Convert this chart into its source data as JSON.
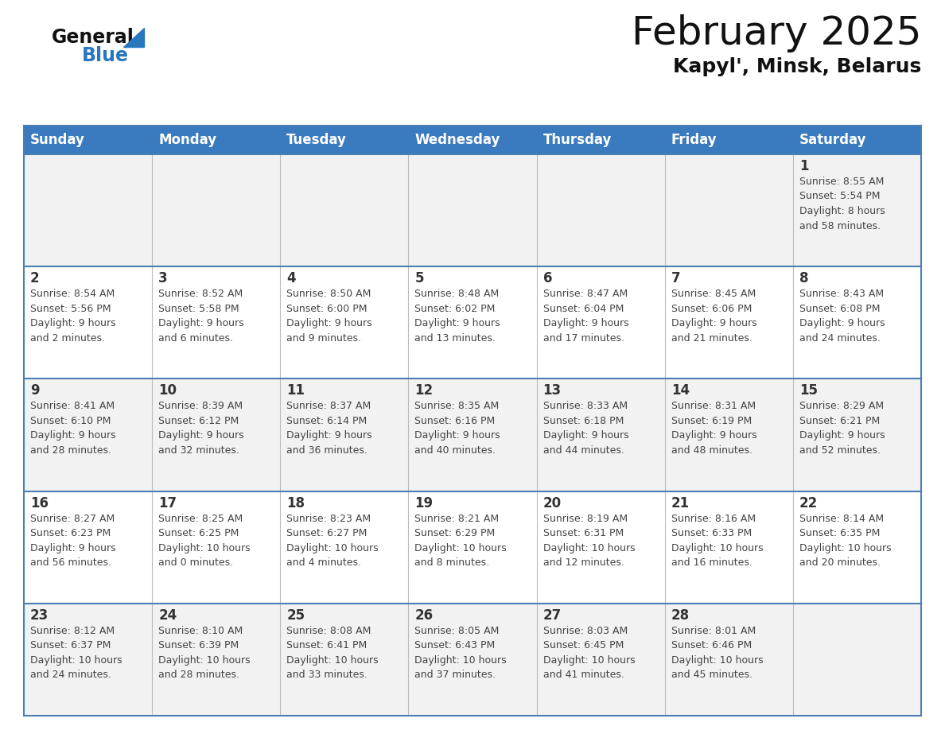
{
  "title": "February 2025",
  "subtitle": "Kapyl', Minsk, Belarus",
  "header_bg": "#3a7abf",
  "header_text": "#ffffff",
  "weekdays": [
    "Sunday",
    "Monday",
    "Tuesday",
    "Wednesday",
    "Thursday",
    "Friday",
    "Saturday"
  ],
  "row_bg_light": "#f2f2f2",
  "row_bg_white": "#ffffff",
  "cell_border_color": "#4a7fb5",
  "day_number_color": "#333333",
  "info_text_color": "#444444",
  "calendar_data": [
    [
      {
        "day": null,
        "info": ""
      },
      {
        "day": null,
        "info": ""
      },
      {
        "day": null,
        "info": ""
      },
      {
        "day": null,
        "info": ""
      },
      {
        "day": null,
        "info": ""
      },
      {
        "day": null,
        "info": ""
      },
      {
        "day": 1,
        "info": "Sunrise: 8:55 AM\nSunset: 5:54 PM\nDaylight: 8 hours\nand 58 minutes."
      }
    ],
    [
      {
        "day": 2,
        "info": "Sunrise: 8:54 AM\nSunset: 5:56 PM\nDaylight: 9 hours\nand 2 minutes."
      },
      {
        "day": 3,
        "info": "Sunrise: 8:52 AM\nSunset: 5:58 PM\nDaylight: 9 hours\nand 6 minutes."
      },
      {
        "day": 4,
        "info": "Sunrise: 8:50 AM\nSunset: 6:00 PM\nDaylight: 9 hours\nand 9 minutes."
      },
      {
        "day": 5,
        "info": "Sunrise: 8:48 AM\nSunset: 6:02 PM\nDaylight: 9 hours\nand 13 minutes."
      },
      {
        "day": 6,
        "info": "Sunrise: 8:47 AM\nSunset: 6:04 PM\nDaylight: 9 hours\nand 17 minutes."
      },
      {
        "day": 7,
        "info": "Sunrise: 8:45 AM\nSunset: 6:06 PM\nDaylight: 9 hours\nand 21 minutes."
      },
      {
        "day": 8,
        "info": "Sunrise: 8:43 AM\nSunset: 6:08 PM\nDaylight: 9 hours\nand 24 minutes."
      }
    ],
    [
      {
        "day": 9,
        "info": "Sunrise: 8:41 AM\nSunset: 6:10 PM\nDaylight: 9 hours\nand 28 minutes."
      },
      {
        "day": 10,
        "info": "Sunrise: 8:39 AM\nSunset: 6:12 PM\nDaylight: 9 hours\nand 32 minutes."
      },
      {
        "day": 11,
        "info": "Sunrise: 8:37 AM\nSunset: 6:14 PM\nDaylight: 9 hours\nand 36 minutes."
      },
      {
        "day": 12,
        "info": "Sunrise: 8:35 AM\nSunset: 6:16 PM\nDaylight: 9 hours\nand 40 minutes."
      },
      {
        "day": 13,
        "info": "Sunrise: 8:33 AM\nSunset: 6:18 PM\nDaylight: 9 hours\nand 44 minutes."
      },
      {
        "day": 14,
        "info": "Sunrise: 8:31 AM\nSunset: 6:19 PM\nDaylight: 9 hours\nand 48 minutes."
      },
      {
        "day": 15,
        "info": "Sunrise: 8:29 AM\nSunset: 6:21 PM\nDaylight: 9 hours\nand 52 minutes."
      }
    ],
    [
      {
        "day": 16,
        "info": "Sunrise: 8:27 AM\nSunset: 6:23 PM\nDaylight: 9 hours\nand 56 minutes."
      },
      {
        "day": 17,
        "info": "Sunrise: 8:25 AM\nSunset: 6:25 PM\nDaylight: 10 hours\nand 0 minutes."
      },
      {
        "day": 18,
        "info": "Sunrise: 8:23 AM\nSunset: 6:27 PM\nDaylight: 10 hours\nand 4 minutes."
      },
      {
        "day": 19,
        "info": "Sunrise: 8:21 AM\nSunset: 6:29 PM\nDaylight: 10 hours\nand 8 minutes."
      },
      {
        "day": 20,
        "info": "Sunrise: 8:19 AM\nSunset: 6:31 PM\nDaylight: 10 hours\nand 12 minutes."
      },
      {
        "day": 21,
        "info": "Sunrise: 8:16 AM\nSunset: 6:33 PM\nDaylight: 10 hours\nand 16 minutes."
      },
      {
        "day": 22,
        "info": "Sunrise: 8:14 AM\nSunset: 6:35 PM\nDaylight: 10 hours\nand 20 minutes."
      }
    ],
    [
      {
        "day": 23,
        "info": "Sunrise: 8:12 AM\nSunset: 6:37 PM\nDaylight: 10 hours\nand 24 minutes."
      },
      {
        "day": 24,
        "info": "Sunrise: 8:10 AM\nSunset: 6:39 PM\nDaylight: 10 hours\nand 28 minutes."
      },
      {
        "day": 25,
        "info": "Sunrise: 8:08 AM\nSunset: 6:41 PM\nDaylight: 10 hours\nand 33 minutes."
      },
      {
        "day": 26,
        "info": "Sunrise: 8:05 AM\nSunset: 6:43 PM\nDaylight: 10 hours\nand 37 minutes."
      },
      {
        "day": 27,
        "info": "Sunrise: 8:03 AM\nSunset: 6:45 PM\nDaylight: 10 hours\nand 41 minutes."
      },
      {
        "day": 28,
        "info": "Sunrise: 8:01 AM\nSunset: 6:46 PM\nDaylight: 10 hours\nand 45 minutes."
      },
      {
        "day": null,
        "info": ""
      }
    ]
  ],
  "logo_general_color": "#111111",
  "logo_blue_color": "#2878c0",
  "logo_triangle_color": "#2878c0",
  "title_color": "#111111",
  "subtitle_color": "#111111",
  "title_fontsize": 36,
  "subtitle_fontsize": 18,
  "header_fontsize": 12,
  "day_number_fontsize": 12,
  "info_fontsize": 9
}
